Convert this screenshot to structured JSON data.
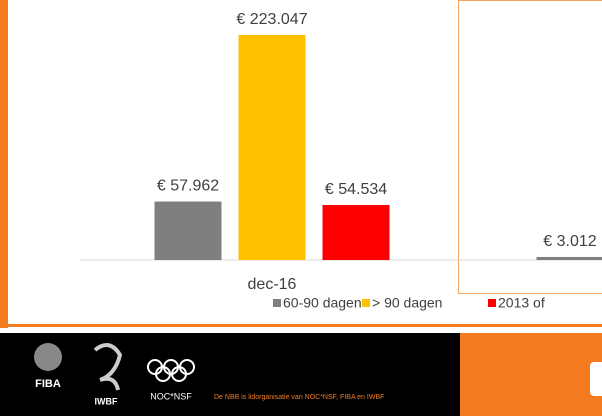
{
  "chart_data": {
    "type": "bar",
    "categories": [
      "dec-16",
      null
    ],
    "series": [
      {
        "name": "60-90 dagen",
        "color": "#7f7f7f",
        "values": [
          57962,
          3012
        ],
        "value_labels": [
          "€ 57.962",
          "€ 3.012"
        ]
      },
      {
        "name": "> 90 dagen",
        "color": "#ffc000",
        "values": [
          223047,
          null
        ],
        "value_labels": [
          "€ 223.047",
          null
        ]
      },
      {
        "name": "2013 of",
        "color": "#ff0000",
        "values": [
          54534,
          null
        ],
        "value_labels": [
          "€ 54.534",
          null
        ]
      }
    ]
  },
  "footer": {
    "logos": [
      "FIBA",
      "IWBF",
      "NOC*NSF"
    ],
    "text": "De NBB is lidorganisatie van NOC*NSF, FIBA en IWBF"
  }
}
